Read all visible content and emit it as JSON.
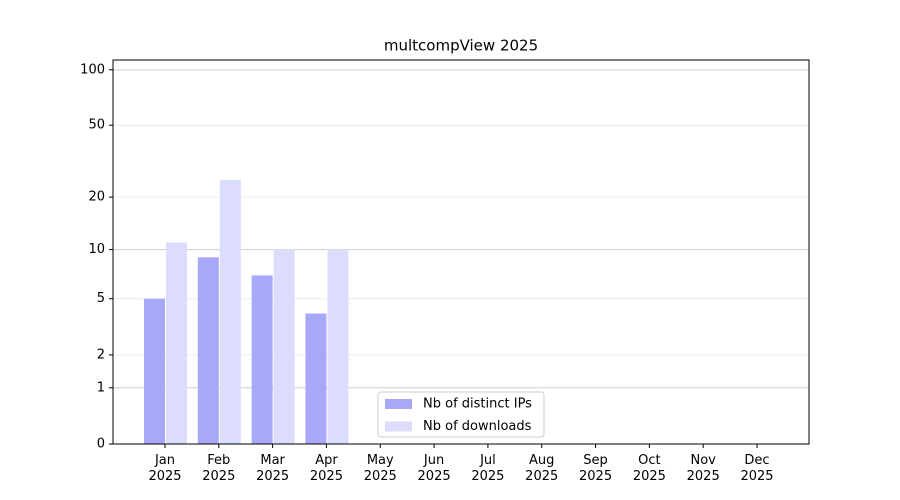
{
  "chart_data": {
    "type": "bar",
    "title": "multcompView 2025",
    "categories": [
      "Jan\n2025",
      "Feb\n2025",
      "Mar\n2025",
      "Apr\n2025",
      "May\n2025",
      "Jun\n2025",
      "Jul\n2025",
      "Aug\n2025",
      "Sep\n2025",
      "Oct\n2025",
      "Nov\n2025",
      "Dec\n2025"
    ],
    "series": [
      {
        "name": "Nb of distinct IPs",
        "color": "#a8a8f8",
        "values": [
          5,
          9,
          7,
          4,
          null,
          null,
          null,
          null,
          null,
          null,
          null,
          null
        ]
      },
      {
        "name": "Nb of downloads",
        "color": "#dcdcfc",
        "values": [
          11,
          25,
          10,
          10,
          null,
          null,
          null,
          null,
          null,
          null,
          null,
          null
        ]
      }
    ],
    "yscale": "log1p",
    "ylim": [
      0,
      113
    ],
    "yticks": [
      0,
      1,
      2,
      5,
      10,
      20,
      50,
      100
    ],
    "grid": true,
    "legend": "lower center"
  }
}
